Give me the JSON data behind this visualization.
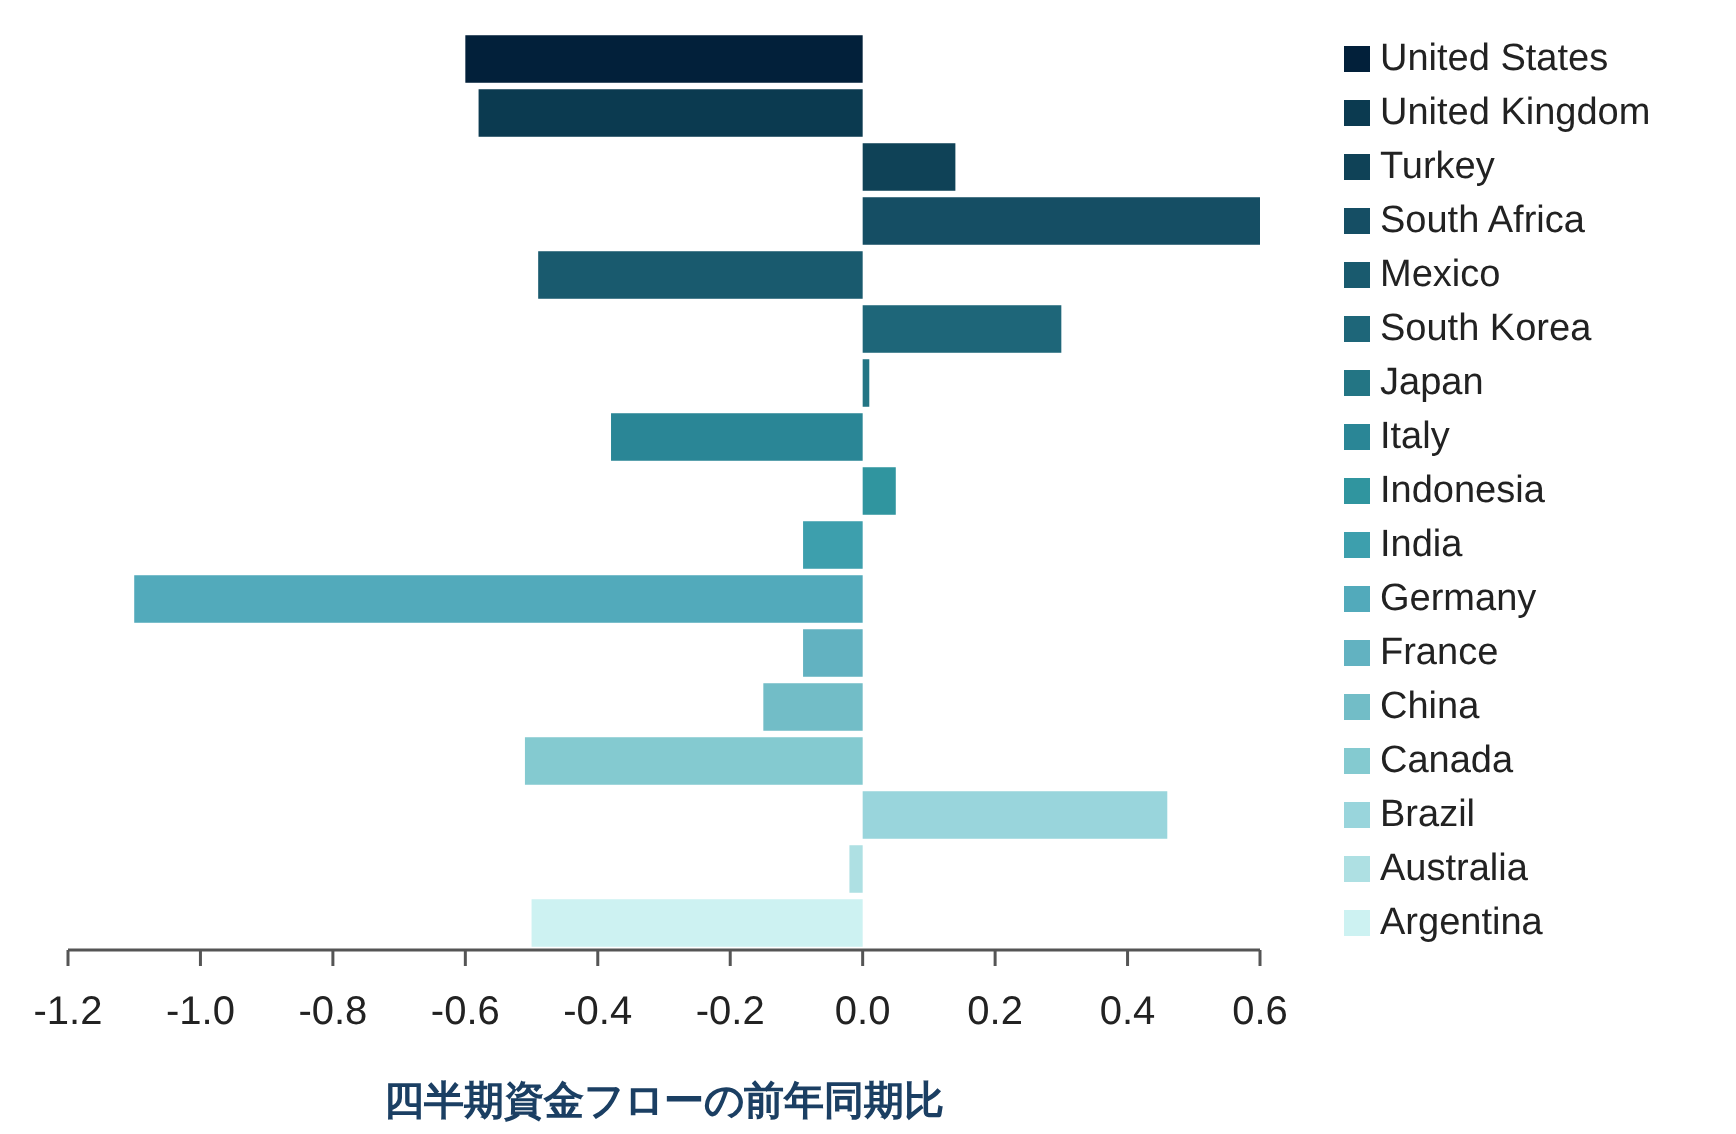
{
  "chart_data": {
    "type": "bar",
    "orientation": "horizontal",
    "xlabel": "四半期資金フローの前年同期比",
    "categories": [
      "United States",
      "United Kingdom",
      "Turkey",
      "South Africa",
      "Mexico",
      "South Korea",
      "Japan",
      "Italy",
      "Indonesia",
      "India",
      "Germany",
      "France",
      "China",
      "Canada",
      "Brazil",
      "Australia",
      "Argentina"
    ],
    "values": [
      -0.6,
      -0.58,
      0.14,
      0.6,
      -0.49,
      0.3,
      0.01,
      -0.38,
      0.05,
      -0.09,
      -1.1,
      -0.09,
      -0.15,
      -0.51,
      0.46,
      -0.02,
      -0.5
    ],
    "colors": [
      "#02203a",
      "#0b3a50",
      "#0f4257",
      "#154e64",
      "#195a6e",
      "#1e6679",
      "#237584",
      "#2a8696",
      "#30959f",
      "#3d9fad",
      "#52aabb",
      "#62b2c1",
      "#72bdc7",
      "#84cad0",
      "#99d5dc",
      "#aee0e3",
      "#cdf2f2"
    ],
    "xlim": [
      -1.2,
      0.6
    ],
    "xticks": [
      {
        "value": -1.2,
        "label": "-1.2"
      },
      {
        "value": -1.0,
        "label": "-1.0"
      },
      {
        "value": -0.8,
        "label": "-0.8"
      },
      {
        "value": -0.6,
        "label": "-0.6"
      },
      {
        "value": -0.4,
        "label": "-0.4"
      },
      {
        "value": -0.2,
        "label": "-0.2"
      },
      {
        "value": 0,
        "label": "0.0"
      },
      {
        "value": 0.2,
        "label": "0.2"
      },
      {
        "value": 0.4,
        "label": "0.4"
      },
      {
        "value": 0.6,
        "label": "0.6"
      }
    ],
    "tick_labels": "x"
  }
}
